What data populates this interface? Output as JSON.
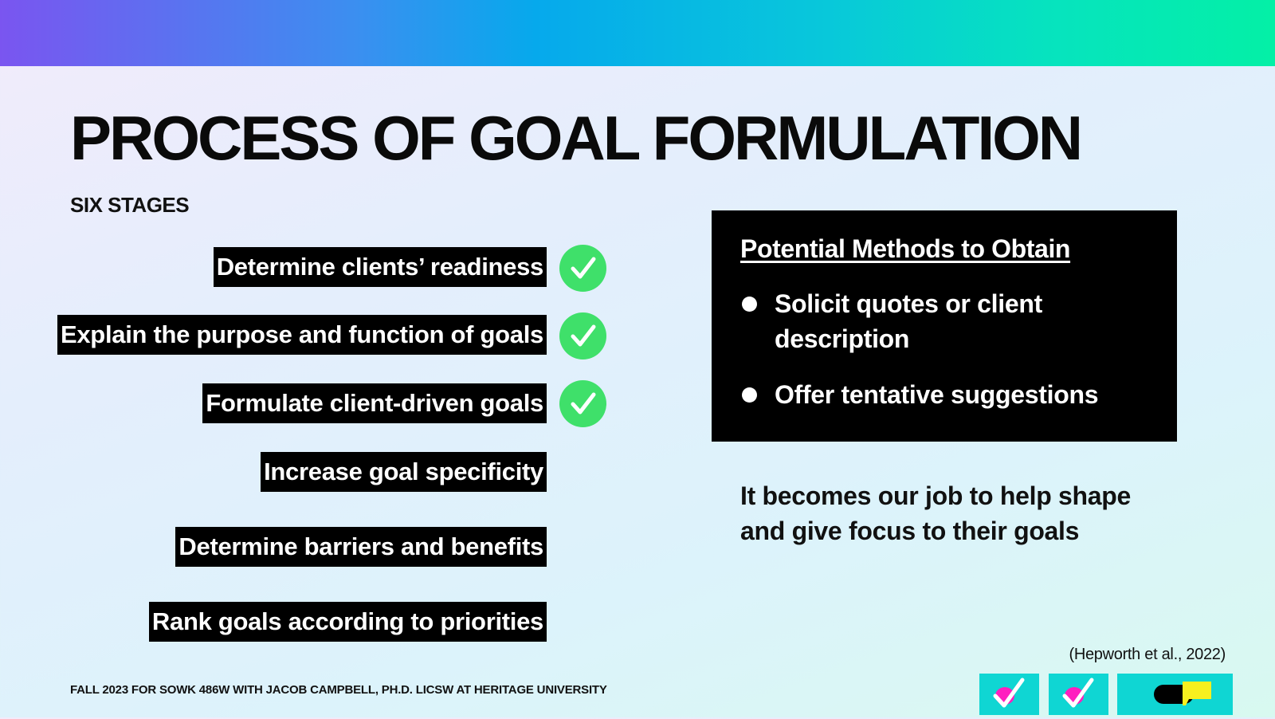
{
  "slide": {
    "title": "PROCESS OF GOAL FORMULATION",
    "subtitle": "SIX STAGES"
  },
  "stages": [
    {
      "label": "Determine clients’ readiness",
      "completed": true
    },
    {
      "label": "Explain the purpose and function of goals",
      "completed": true
    },
    {
      "label": "Formulate client-driven goals",
      "completed": true
    },
    {
      "label": "Increase goal specificity",
      "completed": false
    },
    {
      "label": "Determine barriers and benefits",
      "completed": false
    },
    {
      "label": "Rank goals according to priorities",
      "completed": false
    }
  ],
  "methods": {
    "heading": "Potential Methods to Obtain",
    "items": [
      "Solicit quotes or client description",
      "Offer tentative suggestions"
    ]
  },
  "note": "It becomes our job to help shape and give focus to their goals",
  "citation": "(Hepworth et al., 2022)",
  "footer": "FALL 2023 FOR SOWK 486W WITH JACOB CAMPBELL, PH.D. LICSW AT HERITAGE UNIVERSITY",
  "colors": {
    "check_green": "#3fe06a",
    "tile_cyan": "#0fd6d3",
    "accent_magenta": "#ff1fbf",
    "flag_yellow": "#f7f01f"
  },
  "decor_icons": [
    "checkmark-tile-icon",
    "checkmark-tile-icon",
    "flag-tile-icon"
  ]
}
